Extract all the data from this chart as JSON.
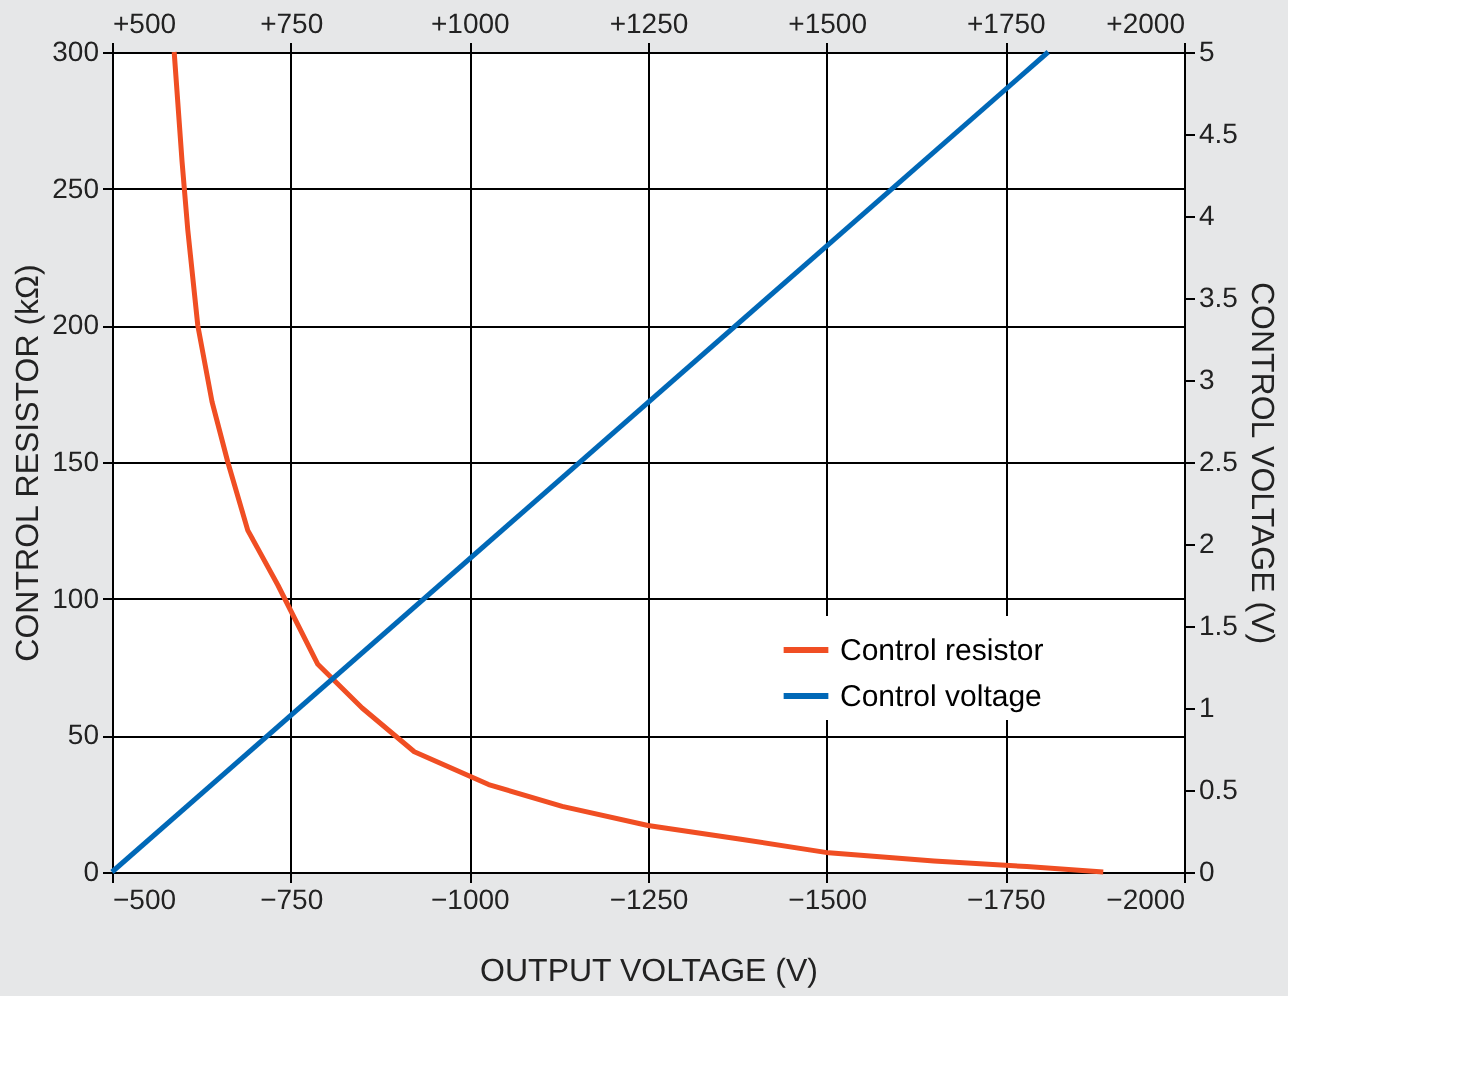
{
  "chart_data": {
    "type": "line",
    "xlabel": "OUTPUT VOLTAGE (V)",
    "ylabel": "CONTROL RESISTOR (kΩ)",
    "y2label": "CONTROL VOLTAGE (V)",
    "xlim": [
      -500,
      -2000
    ],
    "xticks": [
      -500,
      -750,
      -1000,
      -1250,
      -1500,
      -1750,
      -2000
    ],
    "x2lim": [
      500,
      2000
    ],
    "x2ticks": [
      {
        "value": 500,
        "label": "+500"
      },
      {
        "value": 750,
        "label": "+750"
      },
      {
        "value": 1000,
        "label": "+1000"
      },
      {
        "value": 1250,
        "label": "+1250"
      },
      {
        "value": 1500,
        "label": "+1500"
      },
      {
        "value": 1750,
        "label": "+1750"
      },
      {
        "value": 2000,
        "label": "+2000"
      }
    ],
    "ylim": [
      0,
      300
    ],
    "yticks": [
      0,
      50,
      100,
      150,
      200,
      250,
      300
    ],
    "y2lim": [
      0,
      5
    ],
    "y2ticks": [
      0,
      0.5,
      1,
      1.5,
      2,
      2.5,
      3,
      3.5,
      4,
      4.5,
      5
    ],
    "grid": true,
    "legend": "right",
    "marker": "none",
    "line_style": "solid",
    "series": [
      {
        "name": "Control resistor",
        "color": "#f04e23",
        "x": [
          -587,
          -598,
          -606,
          -620,
          -640,
          -662,
          -690,
          -732,
          -788,
          -850,
          -923,
          -1027,
          -1130,
          -1250,
          -1380,
          -1503,
          -1650,
          -1780,
          -1887
        ],
        "values": [
          300,
          260,
          235,
          200,
          172,
          150,
          125,
          105,
          76,
          60,
          44,
          32,
          24,
          17,
          12,
          7,
          4,
          2,
          0
        ]
      },
      {
        "name": "Control voltage",
        "color": "#0068b7",
        "axis": "y2",
        "x": [
          -500,
          -1810
        ],
        "values": [
          0,
          5
        ]
      }
    ]
  }
}
